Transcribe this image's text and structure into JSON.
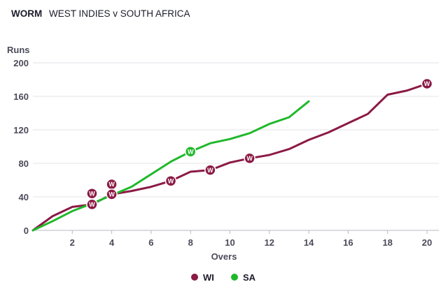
{
  "header": {
    "label": "WORM",
    "match": "WEST INDIES v SOUTH AFRICA"
  },
  "colors": {
    "wi": "#8b1a45",
    "sa": "#20b82b",
    "grid": "#e3e3e8",
    "axis": "#b9b9c2"
  },
  "chart_data": {
    "type": "line",
    "title": "WORM  WEST INDIES v SOUTH AFRICA",
    "xlabel": "Overs",
    "ylabel": "Runs",
    "xlim": [
      0,
      20.5
    ],
    "ylim": [
      0,
      200
    ],
    "x_ticks": [
      2,
      4,
      6,
      8,
      10,
      12,
      14,
      16,
      18,
      20
    ],
    "y_ticks": [
      0,
      40,
      80,
      120,
      160,
      200
    ],
    "grid": "horizontal",
    "legend_position": "bottom",
    "wicket_marker_label": "W",
    "series": [
      {
        "name": "WI",
        "color": "#8b1a45",
        "points": [
          [
            0,
            0
          ],
          [
            1,
            17
          ],
          [
            2,
            28
          ],
          [
            3,
            31
          ],
          [
            4,
            43
          ],
          [
            5,
            47
          ],
          [
            6,
            52
          ],
          [
            7,
            59
          ],
          [
            8,
            70
          ],
          [
            9,
            72
          ],
          [
            10,
            81
          ],
          [
            11,
            86
          ],
          [
            12,
            90
          ],
          [
            13,
            97
          ],
          [
            14,
            108
          ],
          [
            15,
            117
          ],
          [
            16,
            128
          ],
          [
            17,
            139
          ],
          [
            18,
            162
          ],
          [
            19,
            167
          ],
          [
            20,
            175
          ]
        ],
        "wickets": [
          [
            3,
            44
          ],
          [
            3,
            31
          ],
          [
            4,
            55
          ],
          [
            4,
            43
          ],
          [
            7,
            59
          ],
          [
            9,
            72
          ],
          [
            11,
            86
          ],
          [
            20,
            175
          ]
        ]
      },
      {
        "name": "SA",
        "color": "#20b82b",
        "points": [
          [
            0,
            0
          ],
          [
            1,
            11
          ],
          [
            2,
            23
          ],
          [
            3,
            32
          ],
          [
            4,
            42
          ],
          [
            5,
            52
          ],
          [
            6,
            67
          ],
          [
            7,
            82
          ],
          [
            8,
            94
          ],
          [
            9,
            104
          ],
          [
            10,
            109
          ],
          [
            11,
            116
          ],
          [
            12,
            127
          ],
          [
            13,
            135
          ],
          [
            14,
            154
          ]
        ],
        "wickets": [
          [
            8,
            94
          ]
        ]
      }
    ]
  }
}
